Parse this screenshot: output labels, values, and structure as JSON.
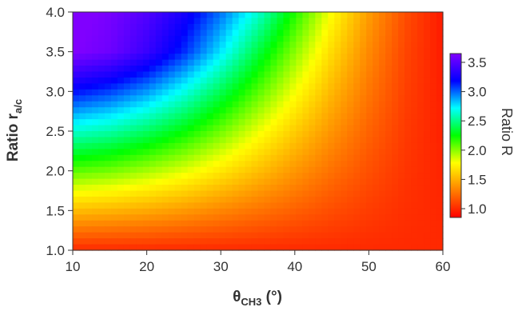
{
  "chart_data": {
    "type": "heatmap",
    "title": "",
    "xlabel": {
      "symbol": "θ",
      "subscript": "CH3",
      "unit": " (°)"
    },
    "ylabel": {
      "text": "Ratio r",
      "subscript": "a/c"
    },
    "xlim": [
      10,
      60
    ],
    "ylim": [
      1.0,
      4.0
    ],
    "x_ticks": [
      10,
      20,
      30,
      40,
      50,
      60
    ],
    "x_tick_labels": [
      "10",
      "20",
      "30",
      "40",
      "50",
      "60"
    ],
    "y_ticks": [
      1.0,
      1.5,
      2.0,
      2.5,
      3.0,
      3.5,
      4.0
    ],
    "y_tick_labels": [
      "1.0",
      "1.5",
      "2.0",
      "2.5",
      "3.0",
      "3.5",
      "4.0"
    ],
    "colorbar": {
      "label": "Ratio R",
      "range": [
        0.85,
        3.65
      ],
      "ticks": [
        1.0,
        1.5,
        2.0,
        2.5,
        3.0,
        3.5
      ],
      "tick_labels": [
        "1.0",
        "1.5",
        "2.0",
        "2.5",
        "3.0",
        "3.5"
      ],
      "colormap": "rainbow",
      "colors": [
        "#ff0000",
        "#ff8000",
        "#ffff00",
        "#00ff00",
        "#00ffff",
        "#0000ff",
        "#8000ff"
      ]
    },
    "grid_x": [
      10,
      15,
      20,
      25,
      30,
      35,
      40,
      45,
      50,
      55,
      60
    ],
    "grid_y": [
      1.0,
      1.5,
      2.0,
      2.5,
      3.0,
      3.5,
      4.0
    ],
    "z": [
      [
        1.0,
        1.0,
        1.0,
        1.0,
        1.0,
        1.0,
        1.0,
        1.0,
        1.0,
        1.0,
        1.0
      ],
      [
        1.54,
        1.51,
        1.47,
        1.41,
        1.34,
        1.27,
        1.2,
        1.13,
        1.07,
        1.02,
        0.99
      ],
      [
        2.09,
        2.04,
        1.95,
        1.84,
        1.7,
        1.55,
        1.4,
        1.26,
        1.14,
        1.04,
        0.98
      ],
      [
        2.63,
        2.56,
        2.43,
        2.26,
        2.05,
        1.82,
        1.6,
        1.39,
        1.21,
        1.06,
        0.97
      ],
      [
        3.17,
        3.07,
        2.91,
        2.68,
        2.4,
        2.1,
        1.8,
        1.52,
        1.28,
        1.08,
        0.96
      ],
      [
        3.66,
        3.58,
        3.39,
        3.11,
        2.76,
        2.37,
        2.0,
        1.65,
        1.35,
        1.1,
        0.95
      ],
      [
        3.7,
        3.62,
        3.48,
        3.27,
        2.98,
        2.64,
        2.2,
        1.78,
        1.42,
        1.13,
        0.94
      ]
    ]
  }
}
